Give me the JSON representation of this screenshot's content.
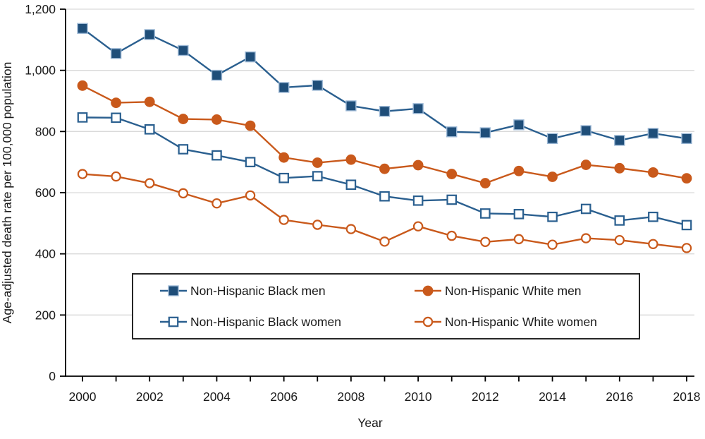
{
  "figure": {
    "background": "#ffffff"
  },
  "chart_data": {
    "type": "line",
    "title": "",
    "xlabel": "Year",
    "ylabel": "Age-adjusted death rate per 100,000 population",
    "x": [
      2000,
      2001,
      2002,
      2003,
      2004,
      2005,
      2006,
      2007,
      2008,
      2009,
      2010,
      2011,
      2012,
      2013,
      2014,
      2015,
      2016,
      2017,
      2018
    ],
    "xtick_labels_shown": [
      "2000",
      "2002",
      "2004",
      "2006",
      "2008",
      "2010",
      "2012",
      "2014",
      "2016",
      "2018"
    ],
    "ylim": [
      0,
      1200
    ],
    "ytick_values": [
      0,
      200,
      400,
      600,
      800,
      1000,
      1200
    ],
    "ytick_labels": [
      "0",
      "200",
      "400",
      "600",
      "800",
      "1,000",
      "1,200"
    ],
    "grid": true,
    "legend_position": "bottom-center-box",
    "series": [
      {
        "name": "Non-Hispanic Black men",
        "marker": "filled-square",
        "line_color": "#2A5F8F",
        "marker_fill": "#1F4E79",
        "marker_stroke": "#9DB9D6",
        "values": [
          1137,
          1055,
          1117,
          1065,
          984,
          1044,
          944,
          951,
          884,
          866,
          875,
          799,
          796,
          822,
          777,
          803,
          771,
          794,
          777
        ]
      },
      {
        "name": "Non-Hispanic White men",
        "marker": "filled-circle",
        "line_color": "#C9591B",
        "marker_fill": "#C9591B",
        "marker_stroke": "#C9591B",
        "values": [
          950,
          894,
          897,
          841,
          839,
          819,
          715,
          698,
          708,
          678,
          690,
          661,
          631,
          671,
          652,
          691,
          680,
          666,
          647
        ]
      },
      {
        "name": "Non-Hispanic Black women",
        "marker": "open-square",
        "line_color": "#2A5F8F",
        "marker_fill": "#ffffff",
        "marker_stroke": "#2A5F8F",
        "values": [
          846,
          845,
          807,
          742,
          722,
          700,
          648,
          654,
          626,
          588,
          574,
          577,
          532,
          530,
          521,
          547,
          509,
          521,
          494
        ]
      },
      {
        "name": "Non-Hispanic White women",
        "marker": "open-circle",
        "line_color": "#C9591B",
        "marker_fill": "#ffffff",
        "marker_stroke": "#C9591B",
        "values": [
          661,
          653,
          631,
          598,
          565,
          591,
          511,
          495,
          481,
          440,
          490,
          459,
          439,
          448,
          430,
          451,
          445,
          432,
          419
        ]
      }
    ]
  },
  "legend": {
    "border_color": "#262626",
    "items": [
      "Non-Hispanic Black men",
      "Non-Hispanic White men",
      "Non-Hispanic Black women",
      "Non-Hispanic White women"
    ]
  },
  "colors": {
    "grid": "#D9D9D9",
    "axis": "#000000",
    "text": "#1a1a1a"
  }
}
